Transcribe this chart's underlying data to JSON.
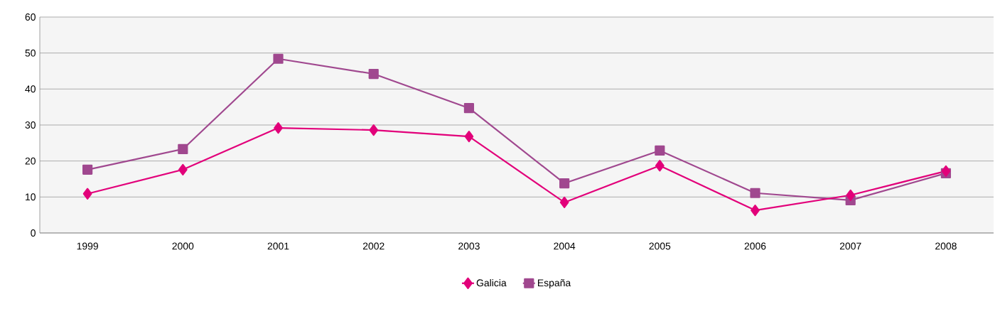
{
  "chart_data": {
    "type": "line",
    "categories": [
      "1999",
      "2000",
      "2001",
      "2002",
      "2003",
      "2004",
      "2005",
      "2006",
      "2007",
      "2008"
    ],
    "series": [
      {
        "name": "Galicia",
        "color": "#e2007a",
        "marker": "diamond",
        "values": [
          10.9,
          17.6,
          29.2,
          28.6,
          26.8,
          8.5,
          18.7,
          6.3,
          10.5,
          17.2
        ]
      },
      {
        "name": "España",
        "color": "#a0488f",
        "marker": "square",
        "values": [
          17.6,
          23.3,
          48.4,
          44.2,
          34.7,
          13.8,
          22.9,
          11.1,
          9.1,
          16.6
        ]
      }
    ],
    "ylim": [
      0,
      60
    ],
    "yticks": [
      0,
      10,
      20,
      30,
      40,
      50,
      60
    ],
    "grid": "y",
    "legend": "bottom",
    "line_style": "solid"
  }
}
